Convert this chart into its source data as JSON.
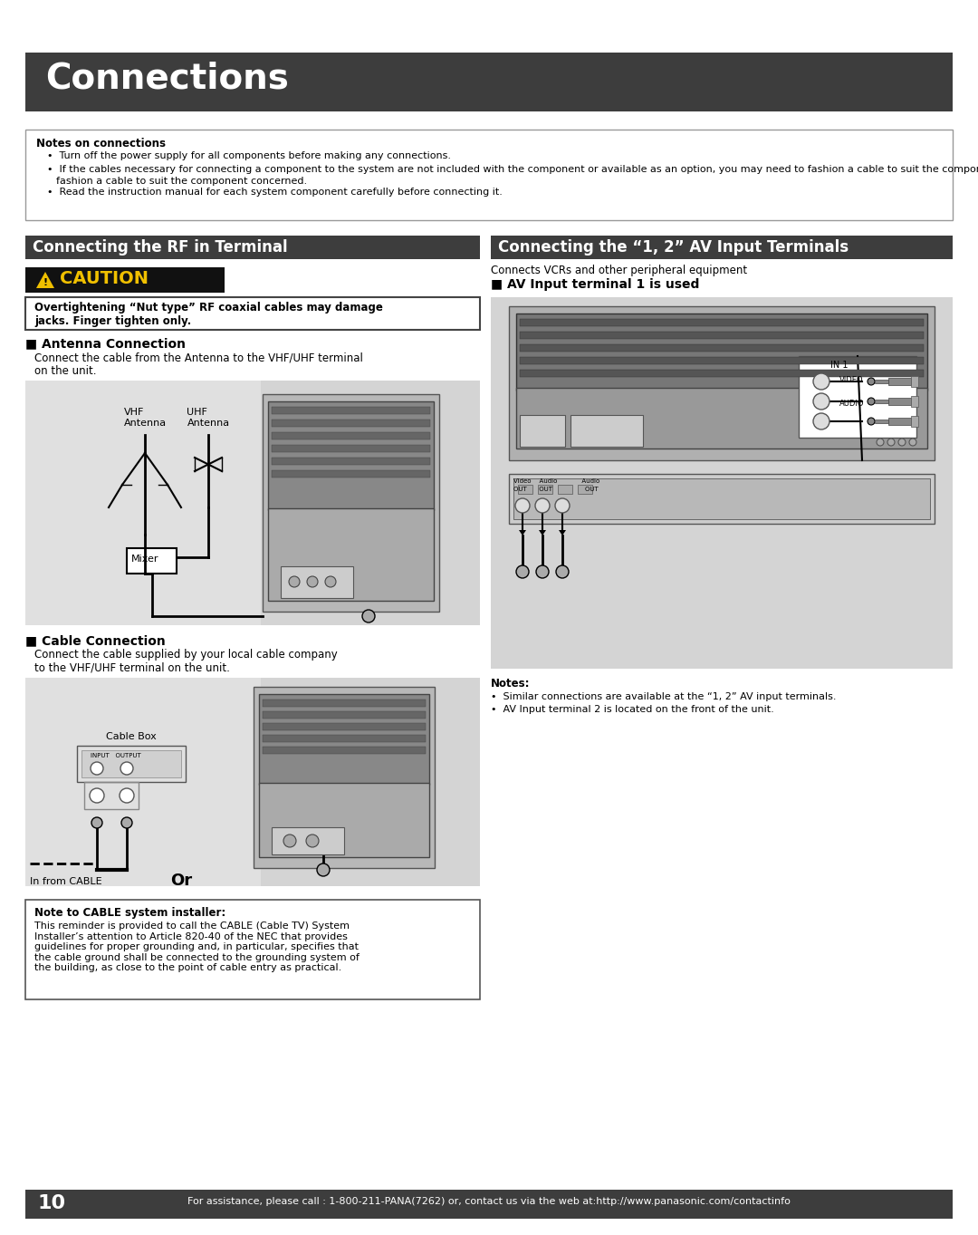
{
  "header_text": "Connections",
  "header_bg": "#3d3d3d",
  "notes_title": "Notes on connections",
  "note1": "•  Turn off the power supply for all components before making any connections.",
  "note2": "•  If the cables necessary for connecting a component to the system are not included with the component or available as an option, you may need to fashion a cable to suit the component concerned.",
  "note3": "•  Read the instruction manual for each system component carefully before connecting it.",
  "sec_left": "Connecting the RF in Terminal",
  "sec_right": "Connecting the “1, 2” AV Input Terminals",
  "sec_bg": "#3d3d3d",
  "caution_text": "CAUTION",
  "caution_warning": "Overtightening “Nut type” RF coaxial cables may damage\njacks. Finger tighten only.",
  "ant_title": "■ Antenna Connection",
  "ant_desc": "Connect the cable from the Antenna to the VHF/UHF terminal\non the unit.",
  "vhf_label": "VHF\nAntenna",
  "uhf_label": "UHF\nAntenna",
  "mixer_label": "Mixer",
  "cable_title": "■ Cable Connection",
  "cable_desc": "Connect the cable supplied by your local cable company\nto the VHF/UHF terminal on the unit.",
  "cable_box_label": "Cable Box",
  "in_from_cable": "In from CABLE",
  "or_label": "Or",
  "av_title": "■ AV Input terminal 1 is used",
  "av_desc": "Connects VCRs and other peripheral equipment",
  "notes_bottom_title": "Notes:",
  "notes_bottom1": "•  Similar connections are available at the “1, 2” AV input terminals.",
  "notes_bottom2": "•  AV Input terminal 2 is located on the front of the unit.",
  "cable_note_title": "Note to CABLE system installer:",
  "cable_note_body": "This reminder is provided to call the CABLE (Cable TV) System\nInstaller’s attention to Article 820-40 of the NEC that provides\nguidelines for proper grounding and, in particular, specifies that\nthe cable ground shall be connected to the grounding system of\nthe building, as close to the point of cable entry as practical.",
  "footer_bg": "#3d3d3d",
  "footer_text": "For assistance, please call : 1-800-211-PANA(7262) or, contact us via the web at:http://www.panasonic.com/contactinfo",
  "page_num": "10",
  "diagram_bg": "#d4d4d4",
  "diag_light": "#cccccc",
  "page_bg": "#ffffff"
}
